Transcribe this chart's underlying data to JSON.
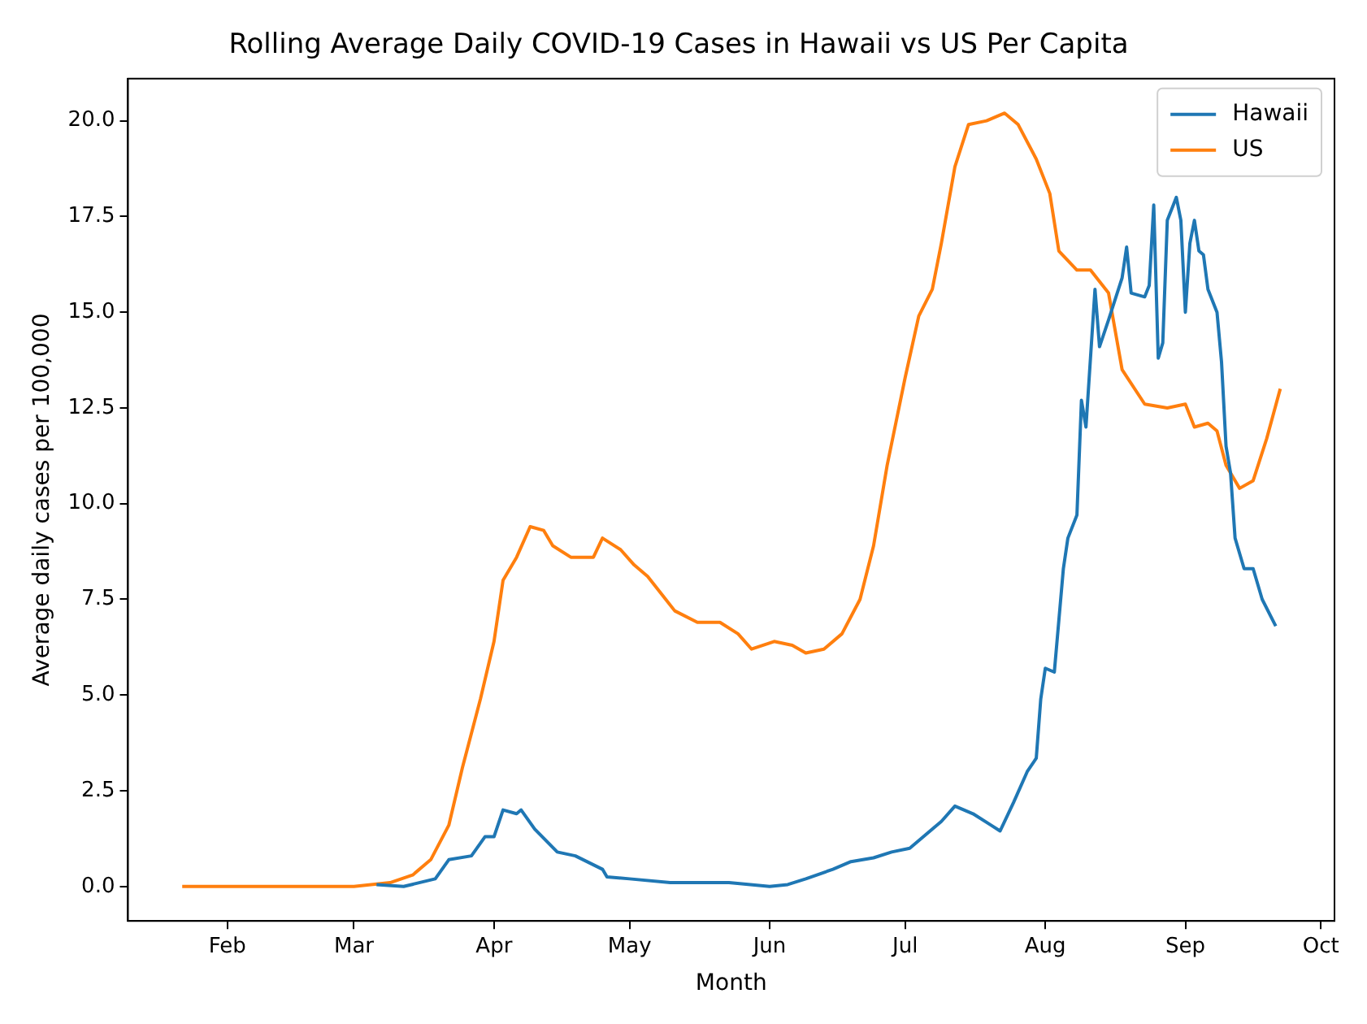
{
  "chart_data": {
    "type": "line",
    "title": "Rolling Average Daily COVID-19 Cases in Hawaii vs US Per Capita",
    "xlabel": "Month",
    "ylabel": "Average daily cases per 100,000",
    "legend": "top right",
    "grid": false,
    "xlim": [
      "--01-10",
      "--10-04"
    ],
    "xticks": [
      {
        "value": "--02-01",
        "label": "Feb"
      },
      {
        "value": "--03-01",
        "label": "Mar"
      },
      {
        "value": "--04-01",
        "label": "Apr"
      },
      {
        "value": "--05-01",
        "label": "May"
      },
      {
        "value": "--06-01",
        "label": "Jun"
      },
      {
        "value": "--07-01",
        "label": "Jul"
      },
      {
        "value": "--08-01",
        "label": "Aug"
      },
      {
        "value": "--09-01",
        "label": "Sep"
      },
      {
        "value": "--10-01",
        "label": "Oct"
      }
    ],
    "ylim": [
      -0.9,
      21.1
    ],
    "yticks": [
      {
        "value": 0,
        "label": "0.0"
      },
      {
        "value": 2.5,
        "label": "2.5"
      },
      {
        "value": 5,
        "label": "5.0"
      },
      {
        "value": 7.5,
        "label": "7.5"
      },
      {
        "value": 10,
        "label": "10.0"
      },
      {
        "value": 12.5,
        "label": "12.5"
      },
      {
        "value": 15,
        "label": "15.0"
      },
      {
        "value": 17.5,
        "label": "17.5"
      },
      {
        "value": 20,
        "label": "20.0"
      }
    ],
    "series": [
      {
        "name": "Hawaii",
        "color": "#1f77b4",
        "x": [
          "--03-06",
          "--03-12",
          "--03-19",
          "--03-22",
          "--03-27",
          "--03-30",
          "--04-01",
          "--04-03",
          "--04-06",
          "--04-07",
          "--04-10",
          "--04-15",
          "--04-19",
          "--04-25",
          "--04-26",
          "--05-01",
          "--05-10",
          "--05-23",
          "--06-01",
          "--06-05",
          "--06-09",
          "--06-15",
          "--06-19",
          "--06-24",
          "--06-28",
          "--07-02",
          "--07-09",
          "--07-12",
          "--07-16",
          "--07-20",
          "--07-22",
          "--07-25",
          "--07-28",
          "--07-30",
          "--07-31",
          "--08-01",
          "--08-03",
          "--08-05",
          "--08-06",
          "--08-08",
          "--08-09",
          "--08-10",
          "--08-12",
          "--08-13",
          "--08-15",
          "--08-18",
          "--08-19",
          "--08-20",
          "--08-23",
          "--08-24",
          "--08-25",
          "--08-26",
          "--08-27",
          "--08-28",
          "--08-30",
          "--08-31",
          "--09-01",
          "--09-02",
          "--09-03",
          "--09-04",
          "--09-05",
          "--09-06",
          "--09-08",
          "--09-09",
          "--09-10",
          "--09-11",
          "--09-12",
          "--09-14",
          "--09-16",
          "--09-18",
          "--09-21"
        ],
        "values": [
          0.05,
          0,
          0.2,
          0.7,
          0.8,
          1.3,
          1.3,
          2.0,
          1.9,
          2.0,
          1.5,
          0.9,
          0.8,
          0.45,
          0.25,
          0.2,
          0.1,
          0.1,
          0,
          0.05,
          0.2,
          0.45,
          0.65,
          0.75,
          0.9,
          1.0,
          1.7,
          2.1,
          1.9,
          1.6,
          1.45,
          2.2,
          3.0,
          3.35,
          4.9,
          5.7,
          5.6,
          8.3,
          9.1,
          9.7,
          12.7,
          12.0,
          15.6,
          14.1,
          14.8,
          15.9,
          16.7,
          15.5,
          15.4,
          15.7,
          17.8,
          13.8,
          14.2,
          17.4,
          18.0,
          17.4,
          15.0,
          16.8,
          17.4,
          16.6,
          16.5,
          15.6,
          15.0,
          13.7,
          11.5,
          10.8,
          9.1,
          8.3,
          8.3,
          7.5,
          6.8
        ]
      },
      {
        "name": "US",
        "color": "#ff7f0e",
        "x": [
          "--01-22",
          "--03-01",
          "--03-09",
          "--03-14",
          "--03-18",
          "--03-22",
          "--03-25",
          "--03-29",
          "--04-01",
          "--04-03",
          "--04-06",
          "--04-09",
          "--04-12",
          "--04-14",
          "--04-18",
          "--04-23",
          "--04-25",
          "--04-29",
          "--05-02",
          "--05-05",
          "--05-09",
          "--05-11",
          "--05-16",
          "--05-21",
          "--05-25",
          "--05-28",
          "--06-02",
          "--06-06",
          "--06-09",
          "--06-13",
          "--06-17",
          "--06-21",
          "--06-24",
          "--06-27",
          "--07-01",
          "--07-04",
          "--07-07",
          "--07-09",
          "--07-12",
          "--07-15",
          "--07-19",
          "--07-23",
          "--07-26",
          "--07-30",
          "--08-02",
          "--08-04",
          "--08-08",
          "--08-11",
          "--08-15",
          "--08-18",
          "--08-23",
          "--08-28",
          "--09-01",
          "--09-03",
          "--09-06",
          "--09-08",
          "--09-10",
          "--09-13",
          "--09-16",
          "--09-19",
          "--09-22"
        ],
        "values": [
          0,
          0,
          0.1,
          0.3,
          0.7,
          1.6,
          3.1,
          4.9,
          6.4,
          8.0,
          8.6,
          9.4,
          9.3,
          8.9,
          8.6,
          8.6,
          9.1,
          8.8,
          8.4,
          8.1,
          7.5,
          7.2,
          6.9,
          6.9,
          6.6,
          6.2,
          6.4,
          6.3,
          6.1,
          6.2,
          6.6,
          7.5,
          8.9,
          11.0,
          13.3,
          14.9,
          15.6,
          16.8,
          18.8,
          19.9,
          20.0,
          20.2,
          19.9,
          19.0,
          18.1,
          16.6,
          16.1,
          16.1,
          15.5,
          13.5,
          12.6,
          12.5,
          12.6,
          12.0,
          12.1,
          11.9,
          11.0,
          10.4,
          10.6,
          11.7,
          13.0
        ]
      }
    ]
  }
}
